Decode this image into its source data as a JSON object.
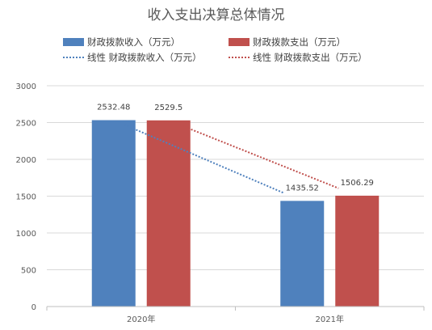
{
  "chart_data": {
    "type": "bar",
    "title": "收入支出决算总体情况",
    "categories": [
      "2020年",
      "2021年"
    ],
    "series": [
      {
        "name": "财政拨款收入（万元）",
        "values": [
          2532.48,
          1435.52
        ],
        "color": "#4f81bd"
      },
      {
        "name": "财政拨款支出（万元）",
        "values": [
          2529.5,
          1506.29
        ],
        "color": "#c0504d"
      }
    ],
    "trendlines": [
      {
        "name": "线性 财政拨款收入（万元）",
        "series_index": 0,
        "color": "#4f81bd",
        "style": "dotted"
      },
      {
        "name": "线性 财政拨款支出（万元）",
        "series_index": 1,
        "color": "#c0504d",
        "style": "dotted"
      }
    ],
    "data_labels": [
      "2532.48",
      "1435.52",
      "2529.5",
      "1506.29"
    ],
    "yticks": [
      "0",
      "500",
      "1000",
      "1500",
      "2000",
      "2500",
      "3000"
    ],
    "ylim": [
      0,
      3000
    ],
    "xlabel": "",
    "ylabel": "",
    "grid": true,
    "legend_position": "top"
  }
}
